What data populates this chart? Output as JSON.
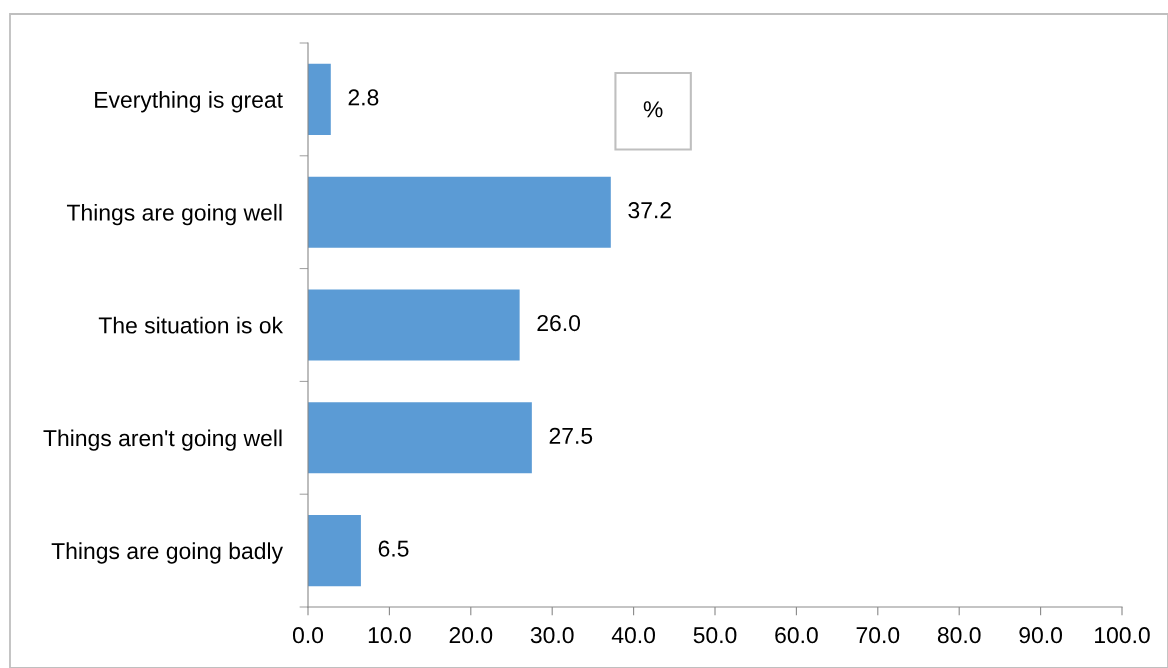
{
  "chart_data": {
    "type": "bar",
    "orientation": "horizontal",
    "categories": [
      "Everything is great",
      "Things are going well",
      "The situation is ok",
      "Things aren't going well",
      "Things are going badly"
    ],
    "values": [
      2.8,
      37.2,
      26.0,
      27.5,
      6.5
    ],
    "value_labels": [
      "2.8",
      "37.2",
      "26.0",
      "27.5",
      "6.5"
    ],
    "color": "#5b9bd5",
    "xlim": [
      0,
      100
    ],
    "xticks": [
      {
        "value": 0,
        "label": "0.0"
      },
      {
        "value": 10,
        "label": "10.0"
      },
      {
        "value": 20,
        "label": "20.0"
      },
      {
        "value": 30,
        "label": "30.0"
      },
      {
        "value": 40,
        "label": "40.0"
      },
      {
        "value": 50,
        "label": "50.0"
      },
      {
        "value": 60,
        "label": "60.0"
      },
      {
        "value": 70,
        "label": "70.0"
      },
      {
        "value": 80,
        "label": "80.0"
      },
      {
        "value": 90,
        "label": "90.0"
      },
      {
        "value": 100,
        "label": "100.0"
      }
    ],
    "annotations": [
      "%"
    ],
    "grid": false
  }
}
